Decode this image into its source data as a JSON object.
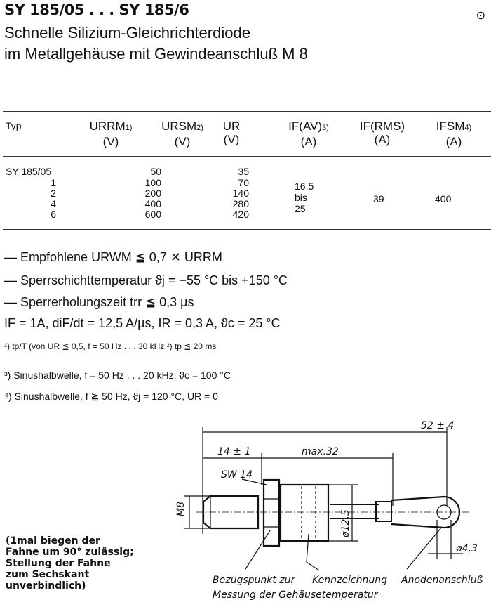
{
  "header": {
    "title": "SY 185/05 . . . SY 185/6",
    "subtitle_1": "Schnelle Silizium-Gleichrichterdiode",
    "subtitle_2": "im Metallgehäuse mit Gewindeanschluß M 8",
    "corner_mark": "⊙"
  },
  "table": {
    "headers": [
      {
        "label": "Typ",
        "unit": ""
      },
      {
        "label": "URRM",
        "sup": "1)",
        "unit": "(V)"
      },
      {
        "label": "URSM",
        "sup": "2)",
        "unit": "(V)"
      },
      {
        "label": "UR",
        "sup": "",
        "unit": "(V)"
      },
      {
        "label": "IF(AV)",
        "sup": "3)",
        "unit": "(A)"
      },
      {
        "label": "IF(RMS)",
        "sup": "",
        "unit": "(A)"
      },
      {
        "label": "IFSM",
        "sup": "4)",
        "unit": "(A)"
      }
    ],
    "types": [
      "SY  185/05",
      "1",
      "2",
      "4",
      "6"
    ],
    "urrm": [
      "50",
      "100",
      "200",
      "400",
      "600"
    ],
    "ur": [
      "35",
      "70",
      "140",
      "280",
      "420"
    ],
    "ifav": [
      "16,5",
      "bis",
      "25"
    ],
    "ifrms": "39",
    "ifsm": "400"
  },
  "specs": [
    "— Empfohlene URWM ≦ 0,7 ✕ URRM",
    "— Sperrschichttemperatur      ϑj = −55 °C bis +150 °C",
    "— Sperrerholungszeit trr ≦ 0,3 µs",
    "   IF = 1A, diF/dt = 12,5 A/µs, IR = 0,3 A, ϑc =  25 °C"
  ],
  "footnotes": [
    "¹)  tp/T (von UR ≦ 0,5, f = 50 Hz . . . 30 kHz  ²) tp ≦ 20 ms",
    "³)  Sinushalbwelle, f = 50 Hz . . . 20 kHz,  ϑc = 100 °C",
    "⁴)  Sinushalbwelle, f ≧ 50 Hz,  ϑj  = 120 °C,  UR = 0"
  ],
  "note": [
    "(1mal biegen der",
    "Fahne um 90° zulässig;",
    "Stellung der Fahne",
    "zum Sechskant",
    "unverbindlich)"
  ],
  "drawing": {
    "overall": "52 ± 4",
    "thread_len": "14 ± 1",
    "body_len": "max.32",
    "wrench": "SW 14",
    "thread": "M8",
    "body_dia": "ø12,5",
    "hole_dia": "ø4,3",
    "label_ref_1": "Bezugspunkt zur",
    "label_ref_2": "Messung  der Gehäusetemperatur",
    "label_marking": "Kennzeichnung",
    "label_anode": "Anodenanschluß"
  }
}
